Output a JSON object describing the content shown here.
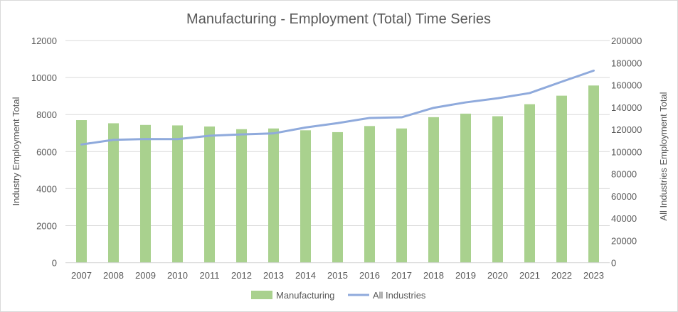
{
  "chart_data": {
    "type": "bar",
    "title": "Manufacturing - Employment (Total) Time Series",
    "xlabel": "",
    "ylabel": "Industry Employment Total",
    "y2label": "All Industries Employment Total",
    "categories": [
      "2007",
      "2008",
      "2009",
      "2010",
      "2011",
      "2012",
      "2013",
      "2014",
      "2015",
      "2016",
      "2017",
      "2018",
      "2019",
      "2020",
      "2021",
      "2022",
      "2023"
    ],
    "series": [
      {
        "name": "Manufacturing",
        "type": "bar",
        "axis": "left",
        "color": "#A9D18E",
        "values": [
          7700,
          7530,
          7440,
          7415,
          7355,
          7210,
          7250,
          7150,
          7050,
          7380,
          7250,
          7860,
          8050,
          7910,
          8560,
          9020,
          9570
        ]
      },
      {
        "name": "All Industries",
        "type": "line",
        "axis": "right",
        "color": "#8FAADC",
        "values": [
          106400,
          110600,
          111300,
          111200,
          114300,
          115500,
          116400,
          121700,
          125600,
          130300,
          130900,
          139400,
          144300,
          148000,
          152700,
          162900,
          172900
        ]
      }
    ],
    "ylim": [
      0,
      12000
    ],
    "yticks": [
      "0",
      "2000",
      "4000",
      "6000",
      "8000",
      "10000",
      "12000"
    ],
    "y2lim": [
      0,
      200000
    ],
    "y2ticks": [
      "0",
      "20000",
      "40000",
      "60000",
      "80000",
      "100000",
      "120000",
      "140000",
      "160000",
      "180000",
      "200000"
    ],
    "grid": true,
    "legend": "bottom"
  }
}
